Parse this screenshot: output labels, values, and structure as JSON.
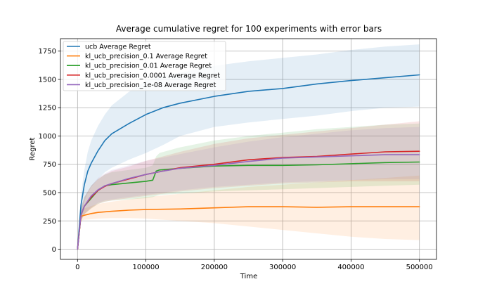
{
  "chart_data": {
    "type": "line",
    "title": "Average cumulative regret for 100 experiments with error bars",
    "xlabel": "Time",
    "ylabel": "Regret",
    "xlim": [
      -25000,
      525000
    ],
    "ylim": [
      -90,
      1860
    ],
    "grid": true,
    "legend_position": "top-left",
    "xticks": [
      0,
      100000,
      200000,
      300000,
      400000,
      500000
    ],
    "xtick_labels": [
      "0",
      "100000",
      "200000",
      "300000",
      "400000",
      "500000"
    ],
    "yticks": [
      0,
      250,
      500,
      750,
      1000,
      1250,
      1500,
      1750
    ],
    "ytick_labels": [
      "0",
      "250",
      "500",
      "750",
      "1000",
      "1250",
      "1500",
      "1750"
    ],
    "series": [
      {
        "name": "ucb Average Regret",
        "color": "#1f77b4",
        "x": [
          0,
          5000,
          10000,
          15000,
          20000,
          30000,
          40000,
          50000,
          75000,
          100000,
          125000,
          150000,
          200000,
          250000,
          300000,
          350000,
          400000,
          450000,
          500000
        ],
        "y": [
          0,
          390,
          570,
          690,
          760,
          870,
          960,
          1020,
          1110,
          1190,
          1250,
          1290,
          1350,
          1395,
          1420,
          1460,
          1490,
          1515,
          1540
        ],
        "lower": [
          0,
          290,
          420,
          500,
          550,
          620,
          680,
          720,
          790,
          850,
          920,
          1000,
          1080,
          1120,
          1150,
          1180,
          1220,
          1250,
          1260
        ],
        "upper": [
          0,
          480,
          700,
          860,
          960,
          1090,
          1190,
          1270,
          1390,
          1490,
          1530,
          1560,
          1620,
          1660,
          1690,
          1720,
          1760,
          1790,
          1810
        ]
      },
      {
        "name": "kl_ucb_precision_0.1 Average Regret",
        "color": "#ff7f0e",
        "x": [
          0,
          5000,
          10000,
          20000,
          30000,
          50000,
          75000,
          100000,
          150000,
          200000,
          250000,
          300000,
          350000,
          400000,
          450000,
          500000
        ],
        "y": [
          0,
          290,
          300,
          315,
          325,
          335,
          345,
          350,
          355,
          365,
          375,
          375,
          370,
          375,
          375,
          375
        ],
        "lower": [
          0,
          250,
          260,
          265,
          270,
          275,
          275,
          270,
          250,
          230,
          200,
          170,
          140,
          110,
          90,
          80
        ],
        "upper": [
          0,
          340,
          360,
          380,
          400,
          420,
          440,
          460,
          490,
          520,
          550,
          570,
          590,
          610,
          630,
          650
        ]
      },
      {
        "name": "kl_ucb_precision_0.01 Average Regret",
        "color": "#2ca02c",
        "x": [
          0,
          5000,
          10000,
          20000,
          30000,
          40000,
          50000,
          75000,
          100000,
          110000,
          115000,
          120000,
          150000,
          200000,
          250000,
          300000,
          350000,
          400000,
          450000,
          500000
        ],
        "y": [
          0,
          300,
          380,
          450,
          520,
          560,
          570,
          585,
          600,
          610,
          690,
          700,
          715,
          735,
          740,
          740,
          745,
          755,
          765,
          770
        ],
        "lower": [
          0,
          250,
          310,
          360,
          400,
          420,
          430,
          440,
          450,
          460,
          470,
          480,
          490,
          510,
          520,
          530,
          540,
          550,
          560,
          570
        ],
        "upper": [
          0,
          360,
          460,
          560,
          620,
          660,
          680,
          700,
          720,
          740,
          820,
          850,
          900,
          960,
          1000,
          1030,
          1060,
          1080,
          1100,
          1110
        ]
      },
      {
        "name": "kl_ucb_precision_0.0001 Average Regret",
        "color": "#d62728",
        "x": [
          0,
          5000,
          10000,
          20000,
          30000,
          40000,
          50000,
          75000,
          100000,
          125000,
          150000,
          200000,
          250000,
          300000,
          350000,
          400000,
          450000,
          500000
        ],
        "y": [
          0,
          300,
          380,
          460,
          520,
          555,
          580,
          620,
          660,
          690,
          720,
          750,
          790,
          810,
          820,
          840,
          860,
          865
        ],
        "lower": [
          0,
          250,
          310,
          360,
          400,
          420,
          430,
          450,
          470,
          490,
          510,
          540,
          560,
          580,
          590,
          600,
          600,
          600
        ],
        "upper": [
          0,
          360,
          460,
          560,
          620,
          660,
          690,
          730,
          780,
          820,
          860,
          930,
          980,
          1010,
          1040,
          1070,
          1100,
          1130
        ]
      },
      {
        "name": "kl_ucb_precision_1e-08 Average Regret",
        "color": "#9467bd",
        "x": [
          0,
          5000,
          10000,
          20000,
          30000,
          40000,
          50000,
          75000,
          100000,
          125000,
          150000,
          200000,
          250000,
          300000,
          350000,
          400000,
          450000,
          500000
        ],
        "y": [
          0,
          300,
          380,
          470,
          525,
          560,
          580,
          625,
          660,
          690,
          715,
          740,
          775,
          805,
          815,
          825,
          835,
          835
        ],
        "lower": [
          0,
          250,
          310,
          370,
          410,
          430,
          440,
          460,
          480,
          500,
          520,
          550,
          570,
          590,
          600,
          610,
          620,
          620
        ],
        "upper": [
          0,
          360,
          460,
          560,
          630,
          670,
          700,
          740,
          780,
          810,
          840,
          900,
          950,
          990,
          1020,
          1050,
          1070,
          1080
        ]
      }
    ]
  }
}
